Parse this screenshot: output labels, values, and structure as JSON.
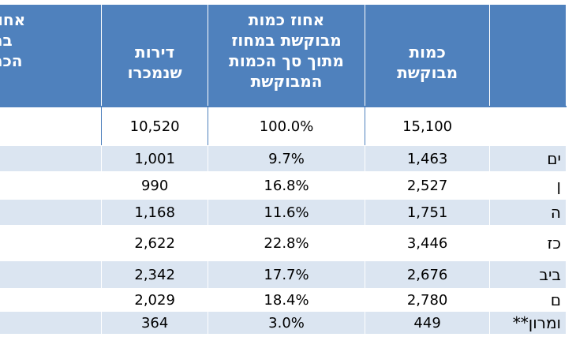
{
  "header": {
    "region": "",
    "requested_qty": "כמות\nמבוקשת",
    "requested_pct": "אחוז כמות\nמבוקשת במחוז\nמתוך סך הכמות\nהמבוקשת",
    "sold": "דירות\nשנמכרו",
    "sold_pct": "אחוז\nבמ\nהכמ"
  },
  "rows": [
    {
      "region": "",
      "requested_qty": "15,100",
      "requested_pct": "100.0%",
      "sold": "10,520",
      "sold_pct": ""
    },
    {
      "region": "ים",
      "requested_qty": "1,463",
      "requested_pct": "9.7%",
      "sold": "1,001",
      "sold_pct": ""
    },
    {
      "region": "ן",
      "requested_qty": "2,527",
      "requested_pct": "16.8%",
      "sold": "990",
      "sold_pct": ""
    },
    {
      "region": "ה",
      "requested_qty": "1,751",
      "requested_pct": "11.6%",
      "sold": "1,168",
      "sold_pct": ""
    },
    {
      "region": "כז",
      "requested_qty": "3,446",
      "requested_pct": "22.8%",
      "sold": "2,622",
      "sold_pct": ""
    },
    {
      "region": "ביב",
      "requested_qty": "2,676",
      "requested_pct": "17.7%",
      "sold": "2,342",
      "sold_pct": ""
    },
    {
      "region": "ם",
      "requested_qty": "2,780",
      "requested_pct": "18.4%",
      "sold": "2,029",
      "sold_pct": ""
    },
    {
      "region": "ומרון**",
      "requested_qty": "449",
      "requested_pct": "3.0%",
      "sold": "364",
      "sold_pct": ""
    }
  ],
  "colors": {
    "header_bg": "#4f81bd",
    "band_bg": "#dbe5f1",
    "border": "#4f81bd"
  }
}
